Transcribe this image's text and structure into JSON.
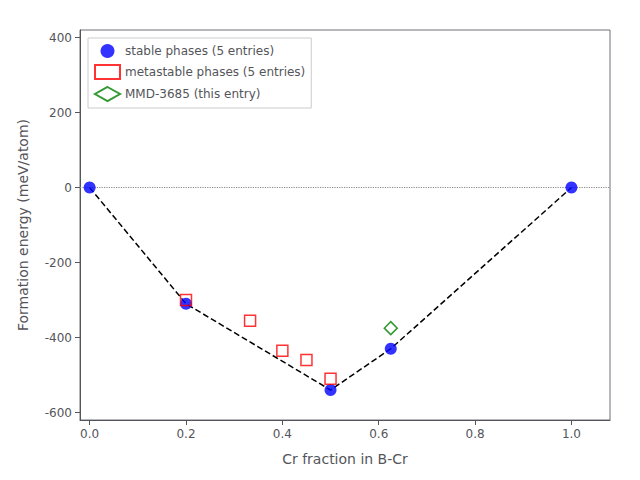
{
  "chart_data": {
    "type": "scatter",
    "xlabel": "Cr fraction in B-Cr",
    "ylabel": "Formation energy (meV/atom)",
    "xlim": [
      -0.02,
      1.08
    ],
    "ylim": [
      -620,
      420
    ],
    "xticks": [
      {
        "value": 0.0,
        "label": "0.0"
      },
      0.2,
      0.4,
      0.6,
      0.8,
      {
        "value": 1.0,
        "label": "1.0"
      }
    ],
    "yticks": [
      -600,
      -400,
      -200,
      0,
      200,
      400
    ],
    "legend": "upper left",
    "series": [
      {
        "type": "hline",
        "color": "#888888",
        "line_style": "dotted",
        "values": [
          0
        ]
      },
      {
        "type": "line",
        "color": "#000000",
        "line_style": "dashed",
        "x": [
          0.0,
          0.2,
          0.5,
          0.625,
          1.0
        ],
        "values": [
          0.0,
          -310.0,
          -540.0,
          -430.0,
          0.0
        ]
      },
      {
        "name": "stable phases (5 entries)",
        "type": "scatter",
        "marker": "circle",
        "color": "#0000ff",
        "x": [
          0.0,
          0.2,
          0.5,
          0.625,
          1.0
        ],
        "values": [
          0.0,
          -310.0,
          -540.0,
          -430.0,
          0.0
        ]
      },
      {
        "name": "metastable phases (5 entries)",
        "type": "scatter",
        "marker": "open_square",
        "color": "#ff0000",
        "x": [
          0.2,
          0.333,
          0.4,
          0.45,
          0.5
        ],
        "values": [
          -300.0,
          -355.0,
          -435.0,
          -460.0,
          -510.0
        ]
      },
      {
        "name": "MMD-3685 (this entry)",
        "type": "scatter",
        "marker": "open_diamond",
        "color": "#008000",
        "x": [
          0.625
        ],
        "values": [
          -375.0
        ]
      }
    ]
  }
}
